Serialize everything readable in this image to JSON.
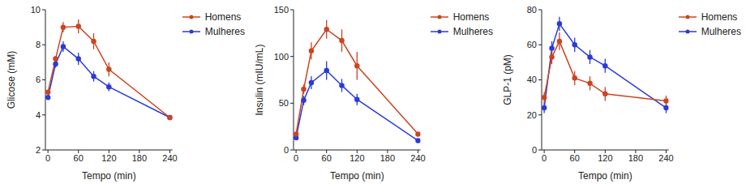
{
  "chart_data": [
    {
      "type": "line",
      "x_label": "Tempo (min)",
      "y_label": "Glicose (mM)",
      "x": [
        0,
        15,
        30,
        60,
        90,
        120,
        240
      ],
      "xlim": [
        -5,
        245
      ],
      "xticks": [
        0,
        60,
        120,
        180,
        240
      ],
      "ylim": [
        2,
        10
      ],
      "yticks": [
        2,
        4,
        6,
        8,
        10
      ],
      "grid": false,
      "legend": "upper right",
      "series": [
        {
          "name": "Mulheres",
          "color": "#2a3bd6",
          "marker": "circle",
          "values": [
            5.0,
            6.9,
            7.9,
            7.2,
            6.2,
            5.6,
            3.85
          ],
          "errors": [
            0.1,
            0.2,
            0.3,
            0.35,
            0.3,
            0.25,
            0.1
          ]
        },
        {
          "name": "Homens",
          "color": "#cc4422",
          "marker": "circle",
          "values": [
            5.3,
            7.2,
            9.0,
            9.05,
            8.2,
            6.6,
            3.85
          ],
          "errors": [
            0.1,
            0.15,
            0.3,
            0.4,
            0.45,
            0.4,
            0.1
          ]
        }
      ]
    },
    {
      "type": "line",
      "x_label": "Tempo (min)",
      "y_label": "Insulin (mIU/mL)",
      "x": [
        0,
        15,
        30,
        60,
        90,
        120,
        240
      ],
      "xlim": [
        -5,
        245
      ],
      "xticks": [
        0,
        60,
        120,
        180,
        240
      ],
      "ylim": [
        0,
        150
      ],
      "yticks": [
        0,
        50,
        100,
        150
      ],
      "grid": false,
      "legend": "upper right",
      "series": [
        {
          "name": "Mulheres",
          "color": "#2a3bd6",
          "marker": "circle",
          "values": [
            13,
            53,
            72,
            85,
            69,
            54,
            10
          ],
          "errors": [
            2,
            5,
            7,
            10,
            7,
            6,
            2
          ]
        },
        {
          "name": "Homens",
          "color": "#cc4422",
          "marker": "circle",
          "values": [
            17,
            65,
            106,
            129,
            117,
            90,
            17
          ],
          "errors": [
            2,
            5,
            9,
            10,
            12,
            15,
            2
          ]
        }
      ]
    },
    {
      "type": "line",
      "x_label": "Tempo (min)",
      "y_label": "GLP-1 (pM)",
      "x": [
        0,
        15,
        30,
        60,
        90,
        120,
        240
      ],
      "xlim": [
        -5,
        245
      ],
      "xticks": [
        0,
        60,
        120,
        180,
        240
      ],
      "ylim": [
        0,
        80
      ],
      "yticks": [
        0,
        20,
        40,
        60,
        80
      ],
      "grid": false,
      "legend": "upper right",
      "series": [
        {
          "name": "Mulheres",
          "color": "#2a3bd6",
          "marker": "circle",
          "values": [
            24,
            58,
            72,
            60,
            53,
            48,
            24
          ],
          "errors": [
            3,
            4,
            4,
            4,
            4,
            4,
            3
          ]
        },
        {
          "name": "Homens",
          "color": "#cc4422",
          "marker": "circle",
          "values": [
            30,
            53,
            62,
            41,
            38,
            32,
            28
          ],
          "errors": [
            3,
            4,
            5,
            4,
            4,
            4,
            3
          ]
        }
      ]
    }
  ]
}
